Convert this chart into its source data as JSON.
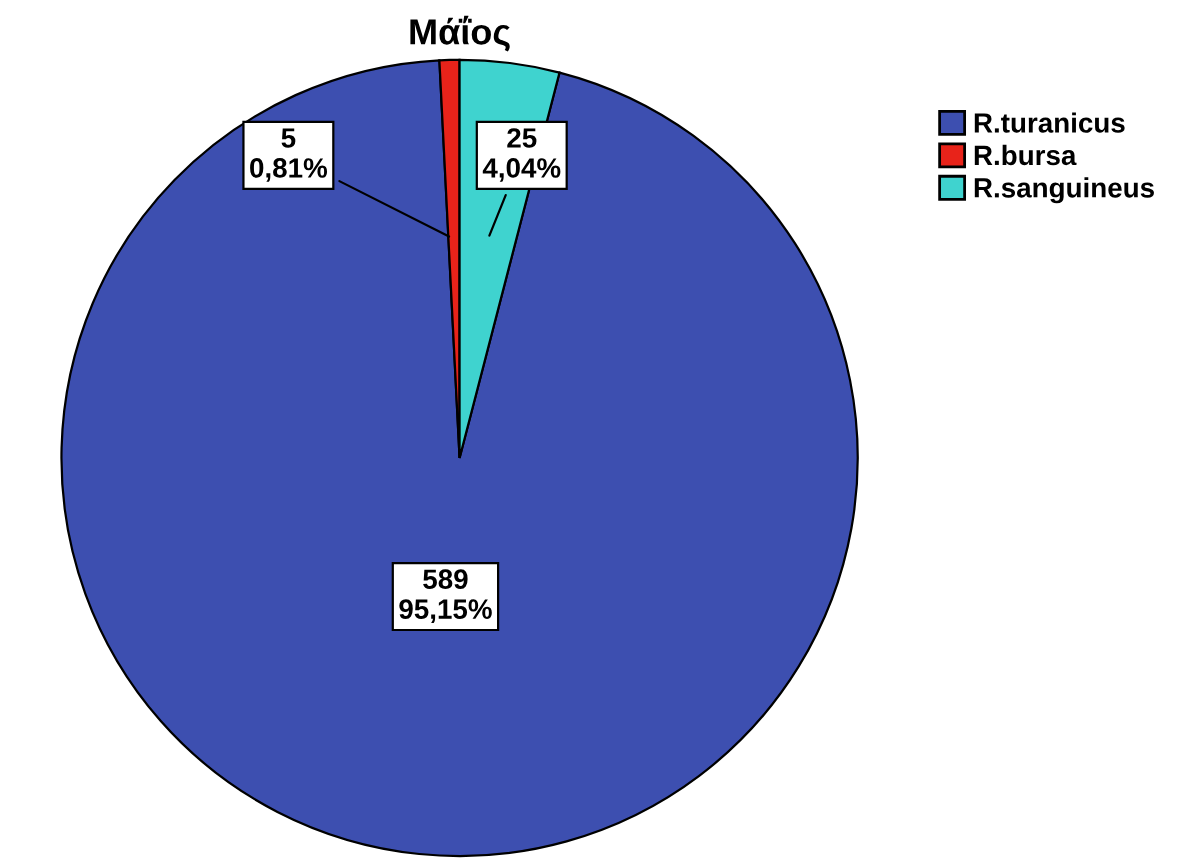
{
  "chart_data": {
    "type": "pie",
    "title": "Μάΐος",
    "categories": [
      "R.turanicus",
      "R.bursa",
      "R.sanguineus"
    ],
    "values": [
      589,
      5,
      25
    ],
    "colors": [
      "#3d4fb0",
      "#e8231a",
      "#3fd3cf"
    ],
    "value_labels": [
      "589\n95,15%",
      "5\n0,81%",
      "25\n4,04%"
    ],
    "legend": "top right"
  }
}
